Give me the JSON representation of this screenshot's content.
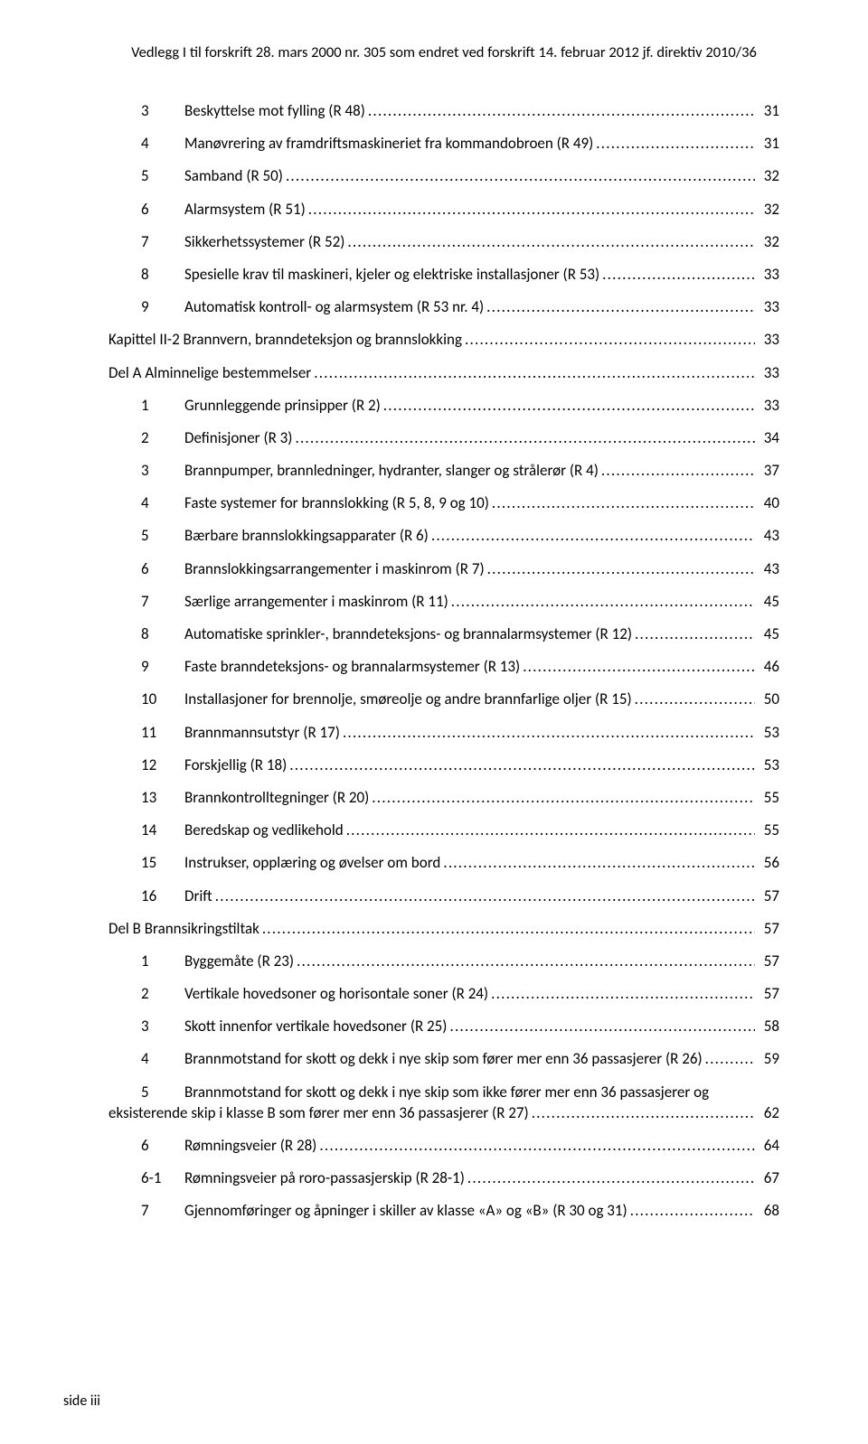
{
  "header": "Vedlegg I til forskrift 28. mars 2000 nr. 305 som endret ved forskrift 14. februar 2012 jf. direktiv 2010/36",
  "footer": "side iii",
  "toc": [
    {
      "level": 2,
      "num": "3",
      "title": "Beskyttelse mot fylling (R 48)",
      "page": "31"
    },
    {
      "level": 2,
      "num": "4",
      "title": "Manøvrering av framdriftsmaskineriet fra kommandobroen (R 49)",
      "page": "31"
    },
    {
      "level": 2,
      "num": "5",
      "title": "Samband (R 50)",
      "page": "32"
    },
    {
      "level": 2,
      "num": "6",
      "title": "Alarmsystem (R 51)",
      "page": "32"
    },
    {
      "level": 2,
      "num": "7",
      "title": "Sikkerhetssystemer (R 52)",
      "page": "32"
    },
    {
      "level": 2,
      "num": "8",
      "title": "Spesielle krav til maskineri, kjeler og elektriske installasjoner (R 53)",
      "page": "33"
    },
    {
      "level": 2,
      "num": "9",
      "title": "Automatisk kontroll- og alarmsystem (R 53 nr. 4)",
      "page": "33"
    },
    {
      "level": 1,
      "section": true,
      "title": "Kapittel II-2 Brannvern, branndeteksjon og brannslokking",
      "page": "33"
    },
    {
      "level": 1,
      "section": true,
      "title": "Del A Alminnelige bestemmelser",
      "page": "33"
    },
    {
      "level": 2,
      "num": "1",
      "title": "Grunnleggende prinsipper (R 2)",
      "page": "33"
    },
    {
      "level": 2,
      "num": "2",
      "title": "Definisjoner (R 3)",
      "page": "34"
    },
    {
      "level": 2,
      "num": "3",
      "title": "Brannpumper, brannledninger, hydranter, slanger og strålerør (R 4)",
      "page": "37"
    },
    {
      "level": 2,
      "num": "4",
      "title": "Faste systemer for brannslokking (R 5, 8, 9 og 10)",
      "page": "40"
    },
    {
      "level": 2,
      "num": "5",
      "title": "Bærbare brannslokkingsapparater (R 6)",
      "page": "43"
    },
    {
      "level": 2,
      "num": "6",
      "title": "Brannslokkingsarrangementer i maskinrom (R 7)",
      "page": "43"
    },
    {
      "level": 2,
      "num": "7",
      "title": "Særlige arrangementer i maskinrom (R 11)",
      "page": "45"
    },
    {
      "level": 2,
      "num": "8",
      "title": "Automatiske sprinkler-, branndeteksjons- og brannalarmsystemer (R 12)",
      "page": "45"
    },
    {
      "level": 2,
      "num": "9",
      "title": "Faste branndeteksjons- og brannalarmsystemer (R 13)",
      "page": "46"
    },
    {
      "level": 2,
      "num": "10",
      "title": "Installasjoner for brennolje, smøreolje og andre brannfarlige oljer (R 15)",
      "page": "50"
    },
    {
      "level": 2,
      "num": "11",
      "title": "Brannmannsutstyr (R 17)",
      "page": "53"
    },
    {
      "level": 2,
      "num": "12",
      "title": "Forskjellig (R 18)",
      "page": "53"
    },
    {
      "level": 2,
      "num": "13",
      "title": "Brannkontrolltegninger (R 20)",
      "page": "55"
    },
    {
      "level": 2,
      "num": "14",
      "title": "Beredskap og vedlikehold",
      "page": "55"
    },
    {
      "level": 2,
      "num": "15",
      "title": "Instrukser, opplæring og øvelser om bord",
      "page": "56"
    },
    {
      "level": 2,
      "num": "16",
      "title": "Drift",
      "page": "57"
    },
    {
      "level": 1,
      "section": true,
      "title": "Del B Brannsikringstiltak",
      "page": "57"
    },
    {
      "level": 2,
      "num": "1",
      "title": "Byggemåte (R 23)",
      "page": "57"
    },
    {
      "level": 2,
      "num": "2",
      "title": "Vertikale hovedsoner og horisontale soner (R 24)",
      "page": "57"
    },
    {
      "level": 2,
      "num": "3",
      "title": "Skott innenfor vertikale hovedsoner (R 25)",
      "page": "58"
    },
    {
      "level": 2,
      "num": "4",
      "title": "Brannmotstand for skott og dekk i nye skip som fører mer enn 36 passasjerer (R 26)",
      "page": "59"
    },
    {
      "level": 2,
      "num": "5",
      "title_line1": "Brannmotstand for skott og dekk i nye skip som ikke fører mer enn 36 passasjerer og",
      "title_line2": "eksisterende skip i klasse B som fører mer enn 36 passasjerer (R 27)",
      "page": "62",
      "multiline": true
    },
    {
      "level": 2,
      "num": "6",
      "title": "Rømningsveier (R 28)",
      "page": "64"
    },
    {
      "level": 2,
      "num": "6-1",
      "title": "Rømningsveier på roro-passasjerskip (R 28-1)",
      "page": "67"
    },
    {
      "level": 2,
      "num": "7",
      "title": "Gjennomføringer og åpninger i skiller av klasse «A» og «B» (R 30 og 31)",
      "page": "68"
    }
  ]
}
